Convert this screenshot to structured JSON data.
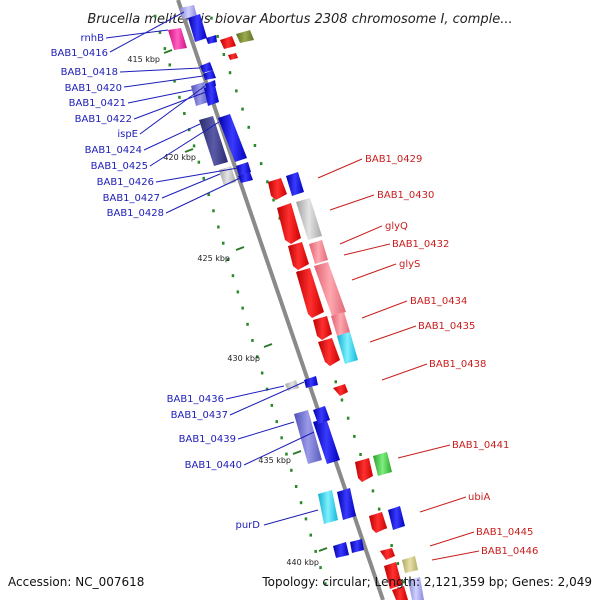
{
  "title": "Brucella melitensis biovar Abortus 2308 chromosome I, comple...",
  "footer": {
    "accession": "Accession: NC_007618",
    "summary": "Topology: circular; Length: 2,121,359 bp; Genes: 2,049"
  },
  "kbp_labels": [
    "415 kbp",
    "420 kbp",
    "425 kbp",
    "430 kbp",
    "435 kbp",
    "440 kbp"
  ],
  "left_labels": [
    "rnhB",
    "BAB1_0416",
    "BAB1_0418",
    "BAB1_0420",
    "BAB1_0421",
    "BAB1_0422",
    "ispE",
    "BAB1_0424",
    "BAB1_0425",
    "BAB1_0426",
    "BAB1_0427",
    "BAB1_0428",
    "BAB1_0436",
    "BAB1_0437",
    "BAB1_0439",
    "BAB1_0440",
    "purD"
  ],
  "right_labels": [
    "BAB1_0429",
    "BAB1_0430",
    "glyQ",
    "BAB1_0432",
    "glyS",
    "BAB1_0434",
    "BAB1_0435",
    "BAB1_0438",
    "BAB1_0441",
    "ubiA",
    "BAB1_0445",
    "BAB1_0446"
  ],
  "colors": {
    "forward_strand": "#0000dd",
    "reverse_strand": "#dd0000",
    "backbone": "#888888",
    "gc_ticks": "#2a8a2a",
    "left_label": "#1d1db8",
    "right_label": "#c81e1e"
  }
}
